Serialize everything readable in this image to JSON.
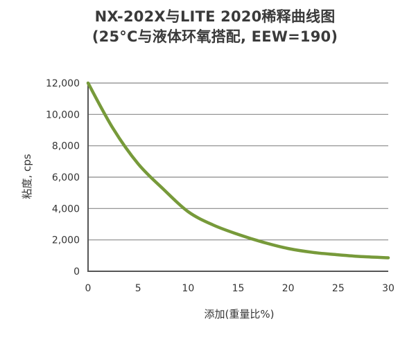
{
  "chart_data": {
    "type": "line",
    "title": "NX-202X与LITE 2020稀释曲线图",
    "subtitle": "(25°C与液体环氧搭配, EEW=190)",
    "xlabel": "添加(重量比%)",
    "ylabel": "粘度, cps",
    "xlim": [
      0,
      30
    ],
    "ylim": [
      0,
      12000
    ],
    "xticks": [
      "0",
      "5",
      "10",
      "15",
      "20",
      "25",
      "30"
    ],
    "yticks": [
      "0",
      "2,000",
      "4,000",
      "6,000",
      "8,000",
      "10,000",
      "12,000"
    ],
    "grid": "horizontal",
    "legend": "none",
    "series": [
      {
        "color": "#779a3a",
        "x": [
          0,
          2.5,
          5,
          7.5,
          10,
          12.5,
          15,
          17.5,
          20,
          22.5,
          25,
          27.5,
          30
        ],
        "y": [
          12000,
          9100,
          6850,
          5250,
          3800,
          2950,
          2350,
          1850,
          1450,
          1200,
          1050,
          930,
          860
        ]
      }
    ]
  }
}
